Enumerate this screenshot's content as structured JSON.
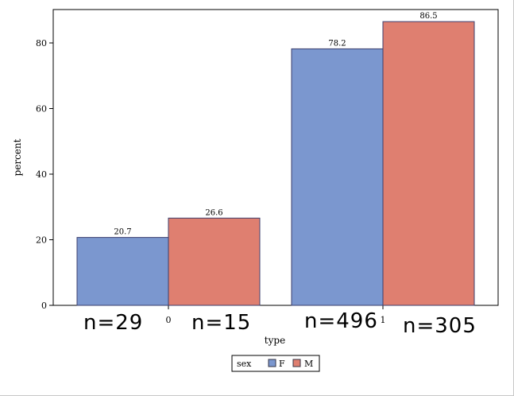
{
  "chart_data": {
    "type": "bar",
    "categories": [
      "0",
      "1"
    ],
    "series": [
      {
        "name": "F",
        "values": [
          20.7,
          78.2
        ],
        "color": "#7b97cf"
      },
      {
        "name": "M",
        "values": [
          26.6,
          86.5
        ],
        "color": "#df7f70"
      }
    ],
    "xlabel": "type",
    "ylabel": "percent",
    "ylim": [
      0,
      90
    ],
    "yticks": [
      0,
      20,
      40,
      60,
      80
    ],
    "data_labels": true,
    "grid": false,
    "legend": {
      "title": "sex",
      "position": "bottom-center"
    },
    "annotations": [
      "n=29",
      "n=15",
      "n=496",
      "n=305"
    ]
  }
}
